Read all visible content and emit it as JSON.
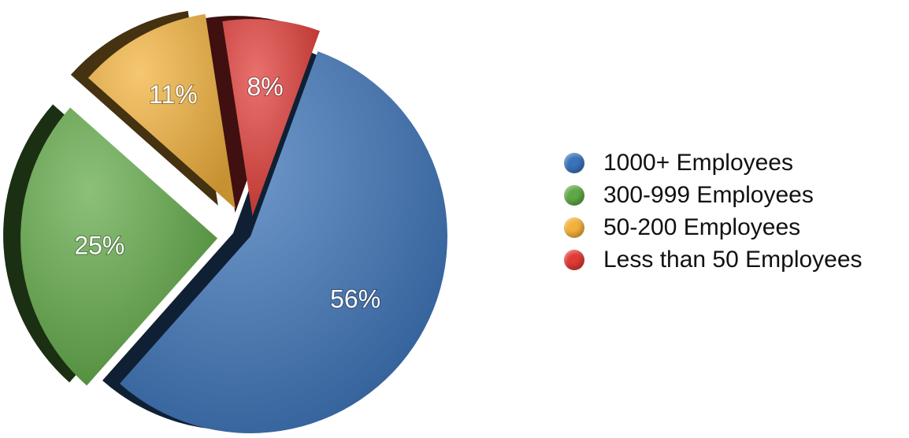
{
  "chart_data": {
    "type": "pie",
    "slices": [
      {
        "name": "1000+ Employees",
        "value": 56,
        "label": "56%",
        "color": "#3a73b8"
      },
      {
        "name": "300-999 Employees",
        "value": 25,
        "label": "25%",
        "color": "#5fa845"
      },
      {
        "name": "50-200 Employees",
        "value": 11,
        "label": "11%",
        "color": "#f2b13a"
      },
      {
        "name": "Less than 50 Employees",
        "value": 8,
        "label": "8%",
        "color": "#e03a35"
      }
    ],
    "legend_position": "right",
    "style": "exploded 3d"
  },
  "legend": {
    "items": [
      {
        "label": "1000+ Employees",
        "color": "#3a73b8"
      },
      {
        "label": "300-999 Employees",
        "color": "#5fa845"
      },
      {
        "label": "50-200 Employees",
        "color": "#f2b13a"
      },
      {
        "label": "Less than 50 Employees",
        "color": "#e03a35"
      }
    ]
  }
}
